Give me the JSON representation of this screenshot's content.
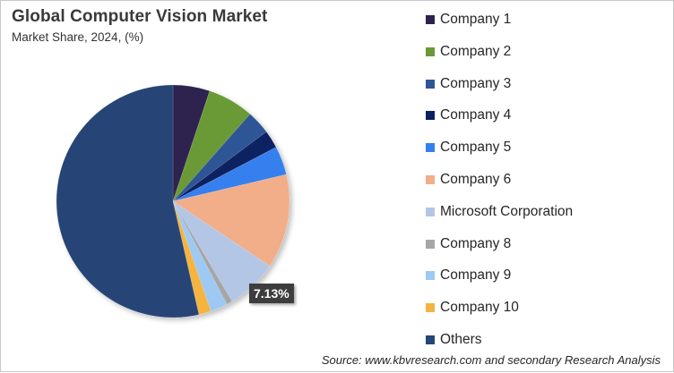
{
  "header": {
    "title": "Global Computer  Vision Market",
    "subtitle": "Market Share, 2024, (%)"
  },
  "data_label": "7.13%",
  "source": "Source: www.kbvresearch.com and secondary Research Analysis",
  "colors": {
    "Company 1": "#2e2150",
    "Company 2": "#6a9a34",
    "Company 3": "#2f5596",
    "Company 4": "#0b2260",
    "Company 5": "#3580ee",
    "Company 6": "#f2ae88",
    "Microsoft Corporation": "#b4c6e6",
    "Company 8": "#a6a6a6",
    "Company 9": "#9dc9f2",
    "Company 10": "#f5b341",
    "Others": "#254576"
  },
  "legend": [
    {
      "label": "Company 1",
      "color": "#2e2150"
    },
    {
      "label": "Company 2",
      "color": "#6a9a34"
    },
    {
      "label": "Company 3",
      "color": "#2f5596"
    },
    {
      "label": "Company 4",
      "color": "#0b2260"
    },
    {
      "label": "Company 5",
      "color": "#3580ee"
    },
    {
      "label": "Company 6",
      "color": "#f2ae88"
    },
    {
      "label": "Microsoft Corporation",
      "color": "#b4c6e6"
    },
    {
      "label": "Company 8",
      "color": "#a6a6a6"
    },
    {
      "label": "Company 9",
      "color": "#9dc9f2"
    },
    {
      "label": "Company 10",
      "color": "#f5b341"
    },
    {
      "label": "Others",
      "color": "#254576"
    }
  ],
  "chart_data": {
    "type": "pie",
    "title": "Global Computer Vision Market",
    "subtitle": "Market Share, 2024, (%)",
    "categories": [
      "Company 1",
      "Company 2",
      "Company 3",
      "Company 4",
      "Company 5",
      "Company 6",
      "Microsoft Corporation",
      "Company 8",
      "Company 9",
      "Company 10",
      "Others"
    ],
    "values": [
      5.1,
      6.4,
      3.3,
      2.5,
      4.0,
      13.1,
      7.13,
      0.8,
      2.4,
      1.7,
      53.57
    ],
    "data_labels": {
      "Microsoft Corporation": "7.13%"
    },
    "start_angle_deg": 0,
    "direction": "clockwise",
    "legend_position": "right",
    "source": "Source: www.kbvresearch.com and secondary Research Analysis"
  }
}
